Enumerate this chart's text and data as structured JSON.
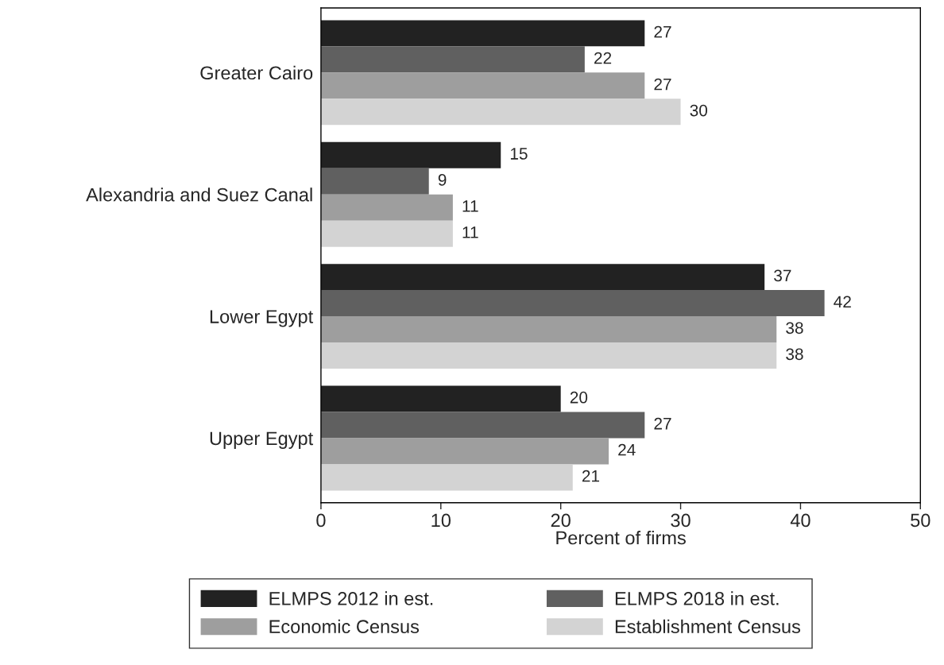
{
  "chart_data": {
    "type": "bar",
    "orientation": "horizontal",
    "xlabel": "Percent of firms",
    "categories": [
      "Greater Cairo",
      "Alexandria and Suez Canal",
      "Lower Egypt",
      "Upper Egypt"
    ],
    "series": [
      {
        "name": "ELMPS 2012 in est.",
        "color": "#222222",
        "values": [
          27,
          15,
          37,
          20
        ]
      },
      {
        "name": "ELMPS 2018 in est.",
        "color": "#606060",
        "values": [
          22,
          9,
          42,
          27
        ]
      },
      {
        "name": "Economic Census",
        "color": "#9e9e9e",
        "values": [
          27,
          11,
          38,
          24
        ]
      },
      {
        "name": "Establishment Census",
        "color": "#d3d3d3",
        "values": [
          30,
          11,
          38,
          21
        ]
      }
    ],
    "xlim": [
      0,
      50
    ],
    "xticks": [
      0,
      10,
      20,
      30,
      40,
      50
    ],
    "data_labels": true,
    "grid": false,
    "legend": "bottom"
  }
}
